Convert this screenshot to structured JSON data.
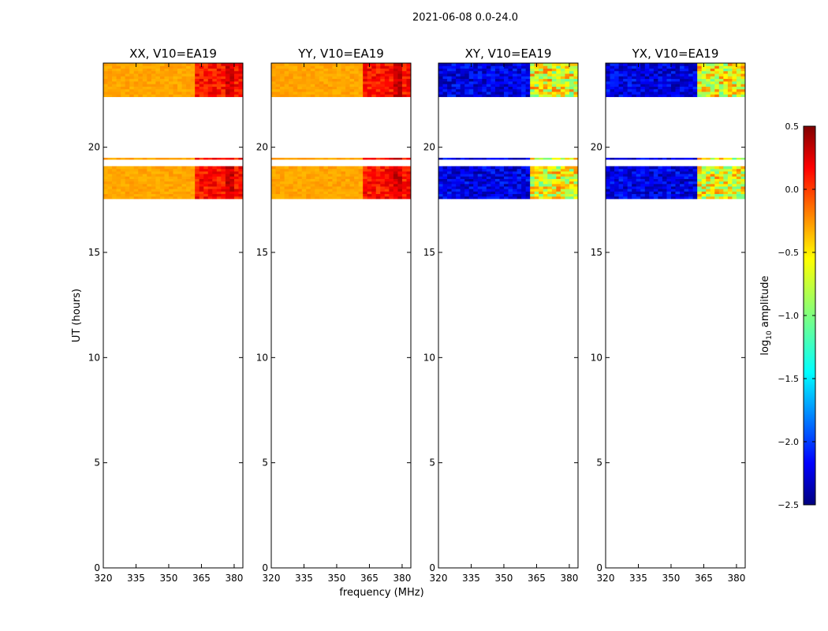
{
  "figure": {
    "suptitle": "2021-06-08 0.0-24.0",
    "ylabel": "UT (hours)",
    "xlabel": "frequency (MHz)"
  },
  "chart_data": [
    {
      "type": "heatmap",
      "title": "XX, V10=EA19",
      "xlim": [
        320,
        384
      ],
      "ylim": [
        0,
        24
      ],
      "xticks": [
        320,
        335,
        350,
        365,
        380
      ],
      "yticks": [
        0,
        5,
        10,
        15,
        20
      ],
      "level": "high",
      "bands": [
        [
          17.55,
          19.1
        ],
        [
          19.42,
          19.5
        ],
        [
          22.4,
          24.0
        ]
      ]
    },
    {
      "type": "heatmap",
      "title": "YY, V10=EA19",
      "xlim": [
        320,
        384
      ],
      "ylim": [
        0,
        24
      ],
      "xticks": [
        320,
        335,
        350,
        365,
        380
      ],
      "yticks": [
        0,
        5,
        10,
        15,
        20
      ],
      "level": "high",
      "bands": [
        [
          17.55,
          19.1
        ],
        [
          19.42,
          19.5
        ],
        [
          22.4,
          24.0
        ]
      ]
    },
    {
      "type": "heatmap",
      "title": "XY, V10=EA19",
      "xlim": [
        320,
        384
      ],
      "ylim": [
        0,
        24
      ],
      "xticks": [
        320,
        335,
        350,
        365,
        380
      ],
      "yticks": [
        0,
        5,
        10,
        15,
        20
      ],
      "level": "low",
      "bands": [
        [
          17.55,
          19.1
        ],
        [
          19.42,
          19.5
        ],
        [
          22.4,
          24.0
        ]
      ]
    },
    {
      "type": "heatmap",
      "title": "YX, V10=EA19",
      "xlim": [
        320,
        384
      ],
      "ylim": [
        0,
        24
      ],
      "xticks": [
        320,
        335,
        350,
        365,
        380
      ],
      "yticks": [
        0,
        5,
        10,
        15,
        20
      ],
      "level": "low",
      "bands": [
        [
          17.55,
          19.1
        ],
        [
          19.42,
          19.5
        ],
        [
          22.4,
          24.0
        ]
      ]
    }
  ],
  "colorbar": {
    "label": "log",
    "label_sub": "10",
    "label_suffix": " amplitude",
    "range": [
      -2.5,
      0.5
    ],
    "ticks": [
      0.5,
      0.0,
      -0.5,
      -1.0,
      -1.5,
      -2.0,
      -2.5
    ],
    "tick_labels": [
      "0.5",
      "0.0",
      "−0.5",
      "−1.0",
      "−1.5",
      "−2.0",
      "−2.5"
    ],
    "colormap": "jet"
  }
}
